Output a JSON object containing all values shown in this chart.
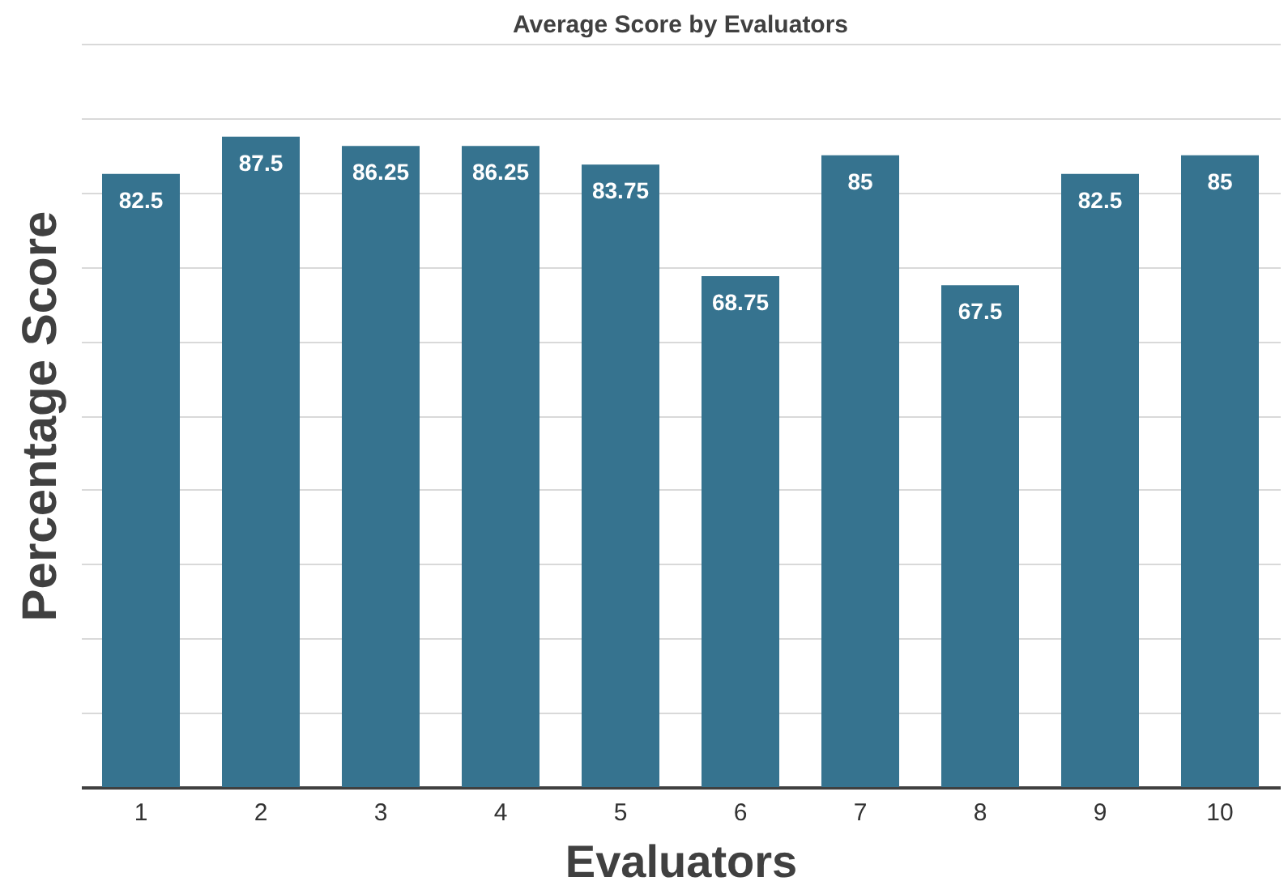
{
  "chart_data": {
    "type": "bar",
    "title": "Average Score by Evaluators",
    "xlabel": "Evaluators",
    "ylabel": "Percentage Score",
    "categories": [
      "1",
      "2",
      "3",
      "4",
      "5",
      "6",
      "7",
      "8",
      "9",
      "10"
    ],
    "values": [
      82.5,
      87.5,
      86.25,
      86.25,
      83.75,
      68.75,
      85,
      67.5,
      82.5,
      85
    ],
    "color": "#36738f",
    "ylim": [
      0,
      100
    ],
    "yticks": [
      {
        "value": 0,
        "label": null
      },
      {
        "value": 10,
        "label": null
      },
      {
        "value": 20,
        "label": null
      },
      {
        "value": 30,
        "label": null
      },
      {
        "value": 40,
        "label": null
      },
      {
        "value": 50,
        "label": null
      },
      {
        "value": 60,
        "label": null
      },
      {
        "value": 70,
        "label": null
      },
      {
        "value": 80,
        "label": null
      },
      {
        "value": 90,
        "label": null
      },
      {
        "value": 100,
        "label": null
      }
    ],
    "tick_labels": "x",
    "grid": "y",
    "data_labels": true
  }
}
